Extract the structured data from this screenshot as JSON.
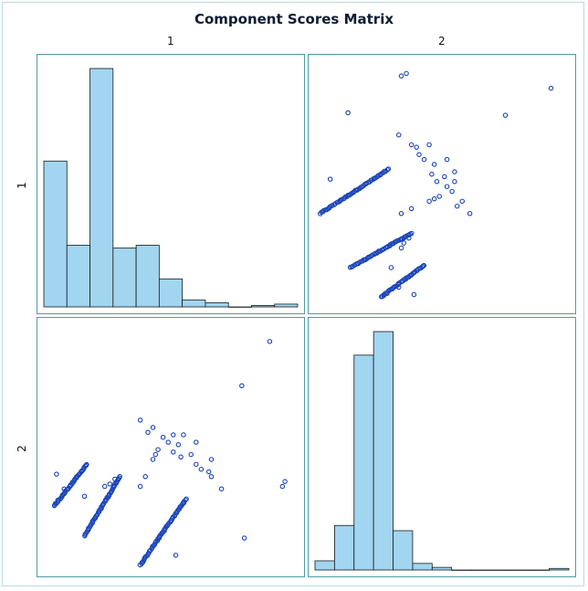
{
  "chart_data": {
    "type": "scatter-matrix",
    "title": "Component Scores Matrix",
    "variables": [
      "1",
      "2"
    ],
    "colors": {
      "bar_fill": "#a2d5f0",
      "bar_stroke": "#1a1a1a",
      "marker": "#1943b8",
      "panel_border": "#4f9aa8"
    },
    "histograms": {
      "1": {
        "bins": 11,
        "counts": [
          52,
          22,
          85,
          21,
          22,
          10,
          2.5,
          1.5,
          0,
          0.5,
          1
        ]
      },
      "2": {
        "bins": 13,
        "counts": [
          3.5,
          17,
          82,
          91,
          15,
          2.5,
          1,
          0,
          0,
          0,
          0,
          0,
          0.6
        ]
      }
    },
    "scatter": {
      "x_var": "2",
      "y_var": "1",
      "bands": [
        {
          "x_range": [
            0.02,
            0.29
          ],
          "y_range": [
            0.38,
            0.56
          ],
          "n": 55
        },
        {
          "x_range": [
            0.14,
            0.38
          ],
          "y_range": [
            0.16,
            0.3
          ],
          "n": 48
        },
        {
          "x_range": [
            0.26,
            0.43
          ],
          "y_range": [
            0.04,
            0.17
          ],
          "n": 40
        }
      ],
      "points": [
        [
          0.3,
          0.16
        ],
        [
          0.33,
          0.08
        ],
        [
          0.34,
          0.24
        ],
        [
          0.34,
          0.38
        ],
        [
          0.38,
          0.4
        ],
        [
          0.37,
          0.28
        ],
        [
          0.35,
          0.26
        ],
        [
          0.4,
          0.65
        ],
        [
          0.38,
          0.66
        ],
        [
          0.43,
          0.6
        ],
        [
          0.41,
          0.62
        ],
        [
          0.45,
          0.66
        ],
        [
          0.47,
          0.58
        ],
        [
          0.46,
          0.54
        ],
        [
          0.51,
          0.53
        ],
        [
          0.48,
          0.51
        ],
        [
          0.55,
          0.51
        ],
        [
          0.54,
          0.47
        ],
        [
          0.52,
          0.49
        ],
        [
          0.49,
          0.45
        ],
        [
          0.47,
          0.44
        ],
        [
          0.45,
          0.43
        ],
        [
          0.61,
          0.38
        ],
        [
          0.58,
          0.43
        ],
        [
          0.56,
          0.41
        ],
        [
          0.55,
          0.55
        ],
        [
          0.52,
          0.6
        ],
        [
          0.34,
          0.94
        ],
        [
          0.36,
          0.95
        ],
        [
          0.93,
          0.89
        ],
        [
          0.13,
          0.79
        ],
        [
          0.75,
          0.78
        ],
        [
          0.33,
          0.7
        ],
        [
          0.06,
          0.52
        ],
        [
          0.39,
          0.05
        ]
      ]
    }
  }
}
